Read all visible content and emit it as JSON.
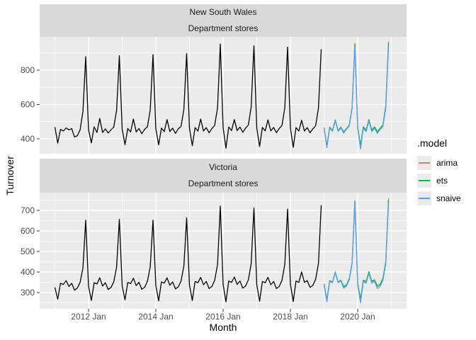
{
  "legend": {
    "title": ".model",
    "entries": [
      {
        "label": "arima",
        "color": "#F8766D"
      },
      {
        "label": "ets",
        "color": "#00BA38"
      },
      {
        "label": "snaive",
        "color": "#619CFF"
      }
    ]
  },
  "style": {
    "panel_bg": "#EBEBEB",
    "strip_bg": "#D9D9D9",
    "grid_color": "#FFFFFF",
    "tick_label_color": "#4D4D4D",
    "tick_mark_color": "#333333",
    "axis_title_color": "#000000"
  },
  "chart_data": {
    "type": "line",
    "title": "",
    "xlabel": "Month",
    "ylabel": "Turnover",
    "x_unit": "months since 2011 Jan (monthly series)",
    "xlim": [
      -5.43,
      125.43
    ],
    "x_ticks": [
      {
        "label": "2012 Jan",
        "m": 12
      },
      {
        "label": "2014 Jan",
        "m": 36
      },
      {
        "label": "2016 Jan",
        "m": 60
      },
      {
        "label": "2018 Jan",
        "m": 84
      },
      {
        "label": "2020 Jan",
        "m": 108
      }
    ],
    "x_minor": [
      0,
      24,
      48,
      72,
      96,
      120
    ],
    "legend_position": "right",
    "grid": true,
    "series_colors": {
      "history": "#000000",
      "arima": "#F8766D",
      "ets": "#00BA38",
      "snaive": "#619CFF"
    },
    "facets": [
      {
        "title": "New South Wales",
        "subtitle": "Department stores",
        "y_ticks": [
          400,
          600,
          800
        ],
        "y_minor": [
          500,
          700,
          900
        ],
        "ylim": [
          313,
          994
        ],
        "history_start_m": 0,
        "history_start_label": "2011 Jan",
        "history": [
          468,
          375,
          455,
          445,
          463,
          452,
          459,
          411,
          418,
          452,
          560,
          878,
          452,
          376,
          469,
          437,
          518,
          437,
          458,
          434,
          452,
          468,
          565,
          884,
          455,
          366,
          460,
          440,
          515,
          440,
          460,
          430,
          455,
          470,
          568,
          890,
          458,
          365,
          462,
          442,
          512,
          442,
          462,
          432,
          458,
          472,
          572,
          896,
          460,
          360,
          465,
          445,
          515,
          445,
          465,
          435,
          460,
          478,
          580,
          952,
          465,
          345,
          468,
          448,
          512,
          448,
          468,
          438,
          462,
          480,
          585,
          942,
          463,
          355,
          466,
          446,
          510,
          446,
          466,
          436,
          460,
          478,
          582,
          934,
          462,
          350,
          465,
          445,
          508,
          445,
          465,
          435,
          458,
          476,
          580,
          922
        ],
        "forecast_start_m": 96,
        "forecast_start_label": "2019 Jan",
        "forecasts": {
          "arima": [
            462,
            352,
            465,
            445,
            507,
            445,
            465,
            437,
            458,
            477,
            582,
            955,
            465,
            355,
            468,
            448,
            510,
            448,
            468,
            440,
            460,
            480,
            587,
            968
          ],
          "ets": [
            465,
            358,
            468,
            448,
            510,
            448,
            468,
            440,
            460,
            480,
            585,
            950,
            468,
            360,
            470,
            450,
            512,
            450,
            470,
            442,
            462,
            482,
            590,
            958
          ],
          "snaive": [
            460,
            348,
            462,
            443,
            505,
            443,
            463,
            433,
            456,
            474,
            578,
            935,
            458,
            340,
            460,
            441,
            503,
            441,
            461,
            431,
            454,
            472,
            576,
            935
          ]
        }
      },
      {
        "title": "Victoria",
        "subtitle": "Department stores",
        "y_ticks": [
          300,
          400,
          500,
          600,
          700
        ],
        "y_minor": [
          250,
          350,
          450,
          550,
          650,
          750
        ],
        "ylim": [
          221,
          786
        ],
        "history_start_m": 0,
        "history_start_label": "2011 Jan",
        "history": [
          325,
          268,
          345,
          340,
          358,
          330,
          345,
          312,
          322,
          350,
          420,
          652,
          330,
          262,
          348,
          342,
          372,
          332,
          348,
          315,
          325,
          352,
          424,
          656,
          332,
          265,
          350,
          344,
          370,
          334,
          350,
          316,
          326,
          354,
          426,
          652,
          334,
          260,
          352,
          346,
          372,
          336,
          352,
          318,
          328,
          356,
          430,
          663,
          336,
          262,
          354,
          348,
          374,
          338,
          354,
          320,
          330,
          360,
          436,
          721,
          340,
          255,
          356,
          350,
          376,
          340,
          356,
          322,
          332,
          362,
          440,
          712,
          338,
          258,
          354,
          348,
          374,
          338,
          354,
          320,
          330,
          360,
          438,
          706,
          340,
          257,
          356,
          350,
          400,
          350,
          358,
          325,
          335,
          365,
          442,
          725
        ],
        "forecast_start_m": 96,
        "forecast_start_label": "2019 Jan",
        "forecasts": {
          "arima": [
            340,
            260,
            356,
            350,
            398,
            350,
            358,
            327,
            335,
            365,
            443,
            748,
            343,
            263,
            358,
            352,
            400,
            352,
            360,
            330,
            338,
            368,
            447,
            758
          ],
          "ets": [
            342,
            265,
            358,
            352,
            400,
            352,
            360,
            330,
            338,
            368,
            446,
            742,
            345,
            268,
            360,
            355,
            402,
            355,
            362,
            332,
            340,
            370,
            450,
            750
          ],
          "snaive": [
            338,
            255,
            354,
            348,
            396,
            348,
            356,
            322,
            332,
            362,
            440,
            735,
            336,
            250,
            352,
            346,
            394,
            346,
            354,
            320,
            330,
            360,
            438,
            735
          ]
        }
      }
    ]
  }
}
